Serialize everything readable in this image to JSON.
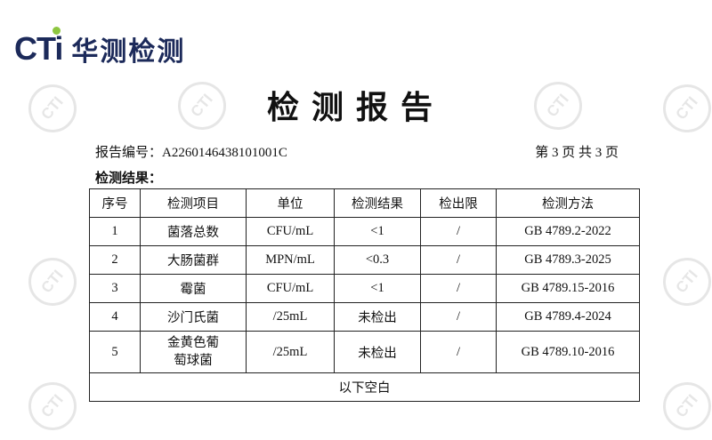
{
  "logo": {
    "latin": "CTi",
    "chinese": "华测检测"
  },
  "watermark": "CTI",
  "title": "检测报告",
  "report_no_label": "报告编号：",
  "report_no": "A2260146438101001C",
  "page_info": "第 3 页 共 3 页",
  "section": "检测结果：",
  "table": {
    "headers": [
      "序号",
      "检测项目",
      "单位",
      "检测结果",
      "检出限",
      "检测方法"
    ],
    "rows": [
      [
        "1",
        "菌落总数",
        "CFU/mL",
        "<1",
        "/",
        "GB 4789.2-2022"
      ],
      [
        "2",
        "大肠菌群",
        "MPN/mL",
        "<0.3",
        "/",
        "GB 4789.3-2025"
      ],
      [
        "3",
        "霉菌",
        "CFU/mL",
        "<1",
        "/",
        "GB 4789.15-2016"
      ],
      [
        "4",
        "沙门氏菌",
        "/25mL",
        "未检出",
        "/",
        "GB 4789.4-2024"
      ],
      [
        "5",
        "金黄色葡萄球菌",
        "/25mL",
        "未检出",
        "/",
        "GB 4789.10-2016"
      ]
    ],
    "footer": "以下空白"
  }
}
